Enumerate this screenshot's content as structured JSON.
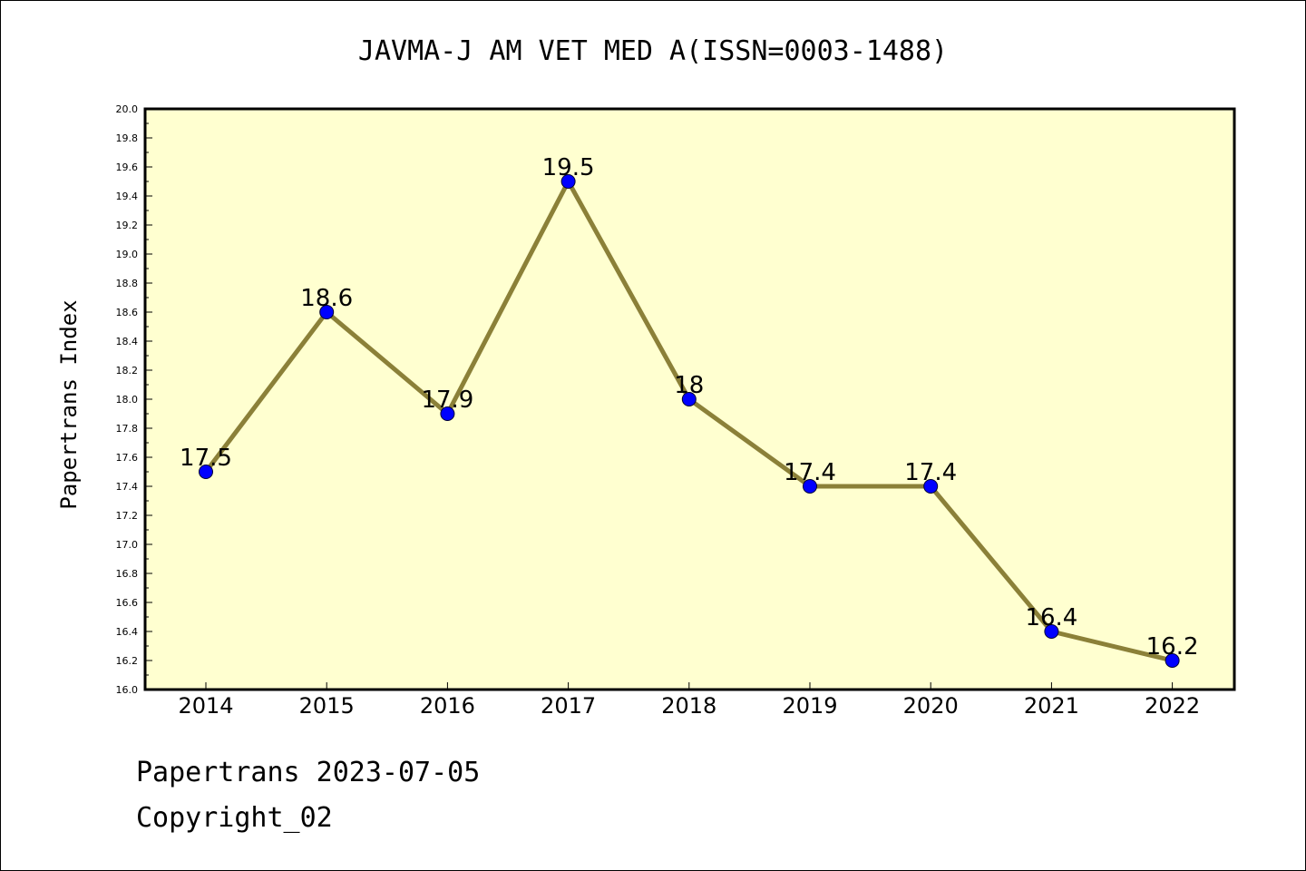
{
  "chart_data": {
    "type": "line",
    "title": "JAVMA-J AM VET MED A(ISSN=0003-1488)",
    "xlabel": "",
    "ylabel": "Papertrans Index",
    "categories": [
      "2014",
      "2015",
      "2016",
      "2017",
      "2018",
      "2019",
      "2020",
      "2021",
      "2022"
    ],
    "values": [
      17.5,
      18.6,
      17.9,
      19.5,
      18,
      17.4,
      17.4,
      16.4,
      16.2
    ],
    "data_labels": [
      "17.5",
      "18.6",
      "17.9",
      "19.5",
      "18",
      "17.4",
      "17.4",
      "16.4",
      "16.2"
    ],
    "ylim": [
      16.0,
      20.0
    ],
    "yticks": [
      "16.0",
      "16.2",
      "16.4",
      "16.6",
      "16.8",
      "17.0",
      "17.2",
      "17.4",
      "17.6",
      "17.8",
      "18.0",
      "18.2",
      "18.4",
      "18.6",
      "18.8",
      "19.0",
      "19.2",
      "19.4",
      "19.6",
      "19.8",
      "20.0"
    ],
    "grid": false,
    "legend": "none",
    "colors": {
      "plot_background": "#ffffd0",
      "line": "#8b8038",
      "marker": "#0000ff",
      "axes": "#000000"
    }
  },
  "footer": {
    "line1": "Papertrans 2023-07-05",
    "line2": "Copyright_02"
  }
}
